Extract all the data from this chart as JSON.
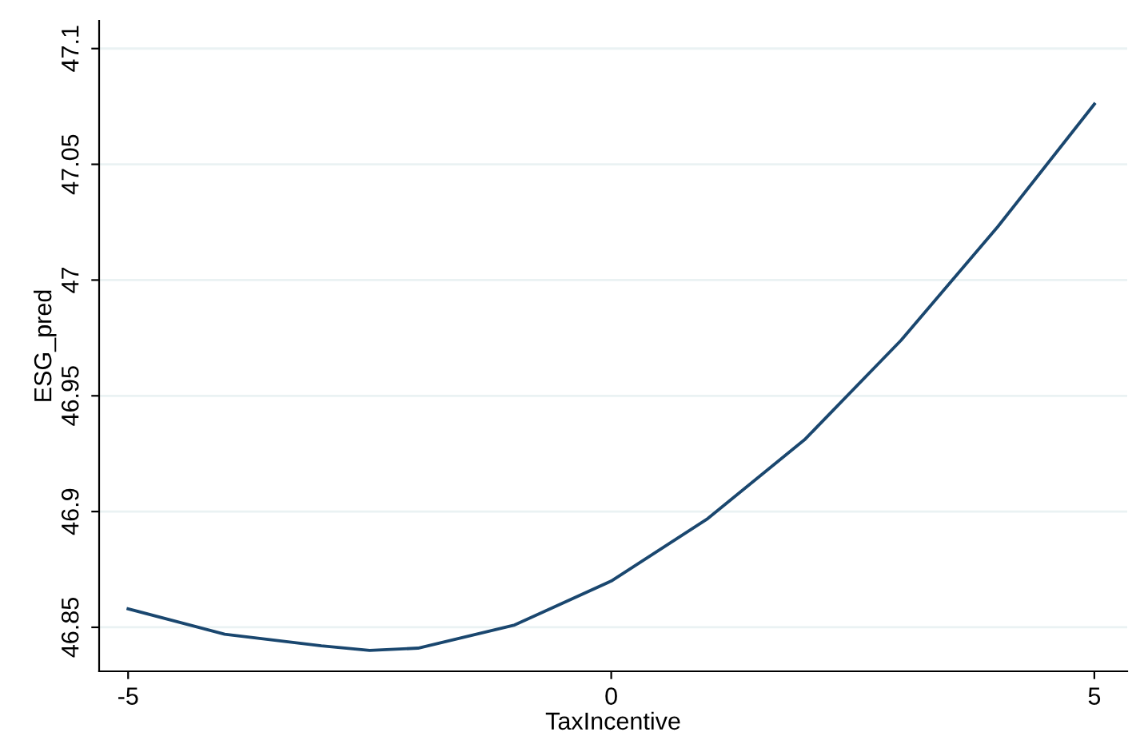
{
  "chart_data": {
    "type": "line",
    "xlabel": "TaxIncentive",
    "ylabel": "ESG_pred",
    "x": [
      -5,
      -4,
      -3,
      -2.5,
      -2,
      -1,
      0,
      1,
      2,
      3,
      4,
      5
    ],
    "series": [
      {
        "color": "#1a476f",
        "values": [
          46.858,
          46.847,
          46.842,
          46.84,
          46.841,
          46.851,
          46.87,
          46.897,
          46.931,
          46.974,
          47.023,
          47.076
        ]
      }
    ],
    "xlim": [
      -5.3,
      5.34
    ],
    "ylim": [
      46.831,
      47.112
    ],
    "xticks": [
      -5,
      0,
      5
    ],
    "yticks": [
      46.85,
      46.9,
      46.95,
      47,
      47.05,
      47.1
    ],
    "grid": "y",
    "legend": false,
    "marker": "none",
    "line_style": "solid"
  }
}
